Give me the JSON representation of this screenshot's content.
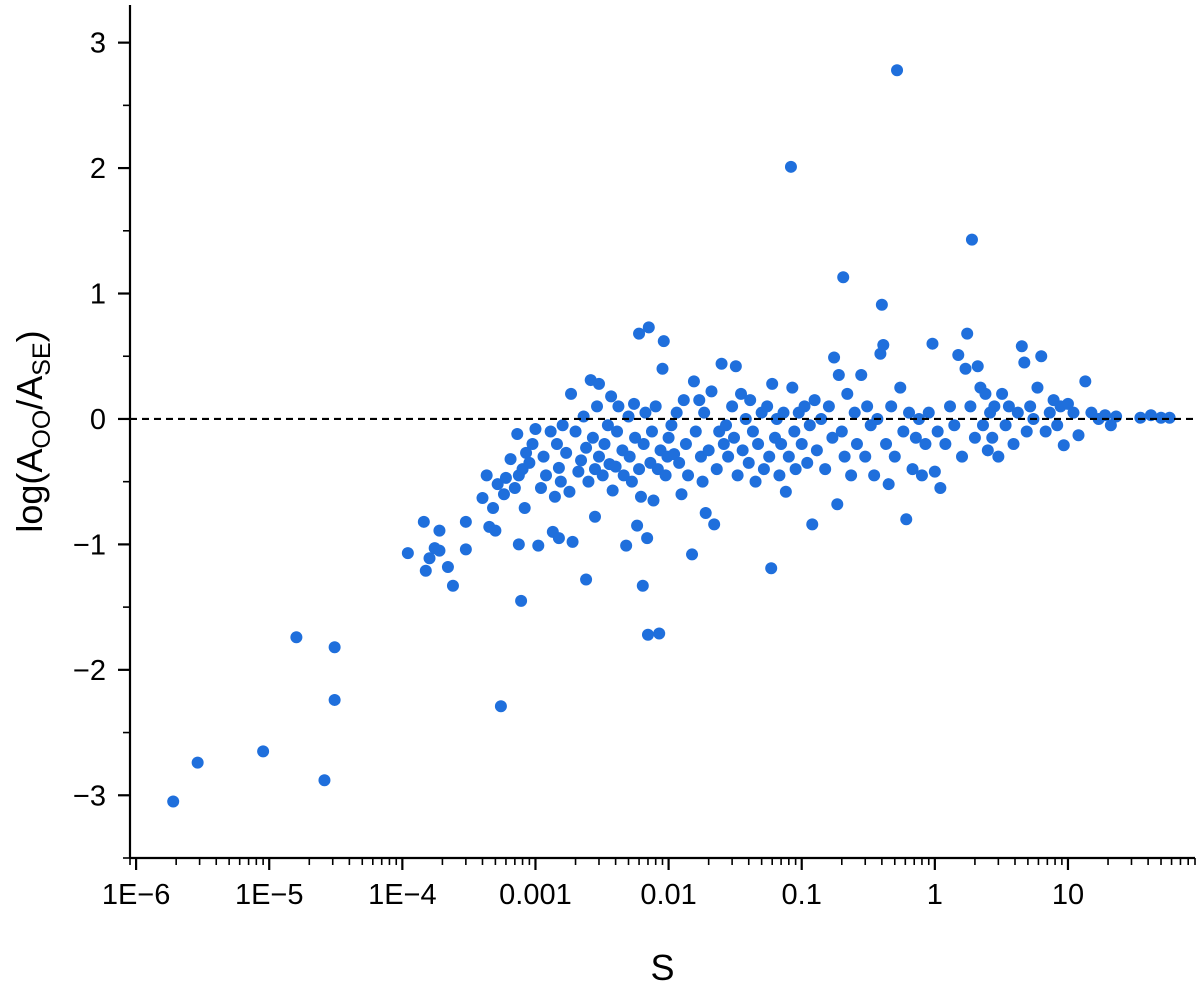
{
  "chart_data": {
    "type": "scatter",
    "xlabel": "S",
    "ylabel": "log(A_OO/A_SE)",
    "ylabel_parts": {
      "prefix": "log(A",
      "sub1": "OO",
      "mid": "/A",
      "sub2": "SE",
      "suffix": ")"
    },
    "x_scale": "log",
    "xlim": [
      9e-07,
      90
    ],
    "ylim": [
      -3.5,
      3.3
    ],
    "x_ticks": [
      1e-06,
      1e-05,
      0.0001,
      0.001,
      0.01,
      0.1,
      1,
      10
    ],
    "x_tick_labels": [
      "1E−6",
      "1E−5",
      "1E−4",
      "0.001",
      "0.01",
      "0.1",
      "1",
      "10"
    ],
    "y_ticks": [
      -3,
      -2,
      -1,
      0,
      1,
      2,
      3
    ],
    "y_tick_labels": [
      "−3",
      "−2",
      "−1",
      "0",
      "1",
      "2",
      "3"
    ],
    "reference_line": {
      "y": 0,
      "style": "dashed"
    },
    "grid": false,
    "marker_color": "#1f6fdc",
    "points": [
      [
        1.9e-06,
        -3.05
      ],
      [
        2.9e-06,
        -2.74
      ],
      [
        9e-06,
        -2.65
      ],
      [
        1.6e-05,
        -1.74
      ],
      [
        2.6e-05,
        -2.88
      ],
      [
        3.1e-05,
        -1.82
      ],
      [
        3.1e-05,
        -2.24
      ],
      [
        0.00011,
        -1.07
      ],
      [
        0.000145,
        -0.82
      ],
      [
        0.00015,
        -1.21
      ],
      [
        0.00016,
        -1.11
      ],
      [
        0.000175,
        -1.03
      ],
      [
        0.00019,
        -0.89
      ],
      [
        0.00019,
        -1.05
      ],
      [
        0.00022,
        -1.18
      ],
      [
        0.00024,
        -1.33
      ],
      [
        0.0003,
        -0.82
      ],
      [
        0.0003,
        -1.04
      ],
      [
        0.0004,
        -0.63
      ],
      [
        0.00043,
        -0.45
      ],
      [
        0.00045,
        -0.86
      ],
      [
        0.00048,
        -0.71
      ],
      [
        0.0005,
        -0.89
      ],
      [
        0.00052,
        -0.52
      ],
      [
        0.00055,
        -2.29
      ],
      [
        0.00058,
        -0.6
      ],
      [
        0.0006,
        -0.47
      ],
      [
        0.00065,
        -0.32
      ],
      [
        0.0007,
        -0.55
      ],
      [
        0.00073,
        -0.12
      ],
      [
        0.00075,
        -0.45
      ],
      [
        0.00075,
        -1.0
      ],
      [
        0.00078,
        -1.45
      ],
      [
        0.0008,
        -0.4
      ],
      [
        0.00083,
        -0.71
      ],
      [
        0.00085,
        -0.27
      ],
      [
        0.0009,
        -0.35
      ],
      [
        0.00095,
        -0.2
      ],
      [
        0.001,
        -0.08
      ],
      [
        0.00105,
        -1.01
      ],
      [
        0.0011,
        -0.55
      ],
      [
        0.00115,
        -0.3
      ],
      [
        0.0012,
        -0.45
      ],
      [
        0.0013,
        -0.1
      ],
      [
        0.00135,
        -0.9
      ],
      [
        0.0014,
        -0.62
      ],
      [
        0.00145,
        -0.2
      ],
      [
        0.0015,
        -0.39
      ],
      [
        0.0015,
        -0.95
      ],
      [
        0.00155,
        -0.5
      ],
      [
        0.0016,
        -0.05
      ],
      [
        0.0017,
        -0.27
      ],
      [
        0.0018,
        -0.58
      ],
      [
        0.00185,
        0.2
      ],
      [
        0.0019,
        -0.98
      ],
      [
        0.002,
        -0.1
      ],
      [
        0.0021,
        -0.42
      ],
      [
        0.0022,
        -0.33
      ],
      [
        0.0023,
        0.02
      ],
      [
        0.0024,
        -0.23
      ],
      [
        0.0024,
        -1.28
      ],
      [
        0.0025,
        -0.5
      ],
      [
        0.0026,
        0.31
      ],
      [
        0.0027,
        -0.15
      ],
      [
        0.0028,
        -0.78
      ],
      [
        0.0028,
        -0.4
      ],
      [
        0.0029,
        0.1
      ],
      [
        0.003,
        -0.3
      ],
      [
        0.003,
        0.28
      ],
      [
        0.0032,
        -0.45
      ],
      [
        0.0033,
        -0.2
      ],
      [
        0.0035,
        -0.05
      ],
      [
        0.0036,
        -0.36
      ],
      [
        0.0037,
        0.18
      ],
      [
        0.0038,
        -0.57
      ],
      [
        0.004,
        -0.38
      ],
      [
        0.0041,
        -0.1
      ],
      [
        0.0042,
        0.1
      ],
      [
        0.0045,
        -0.25
      ],
      [
        0.0046,
        -0.45
      ],
      [
        0.0048,
        -1.01
      ],
      [
        0.005,
        0.02
      ],
      [
        0.0051,
        -0.3
      ],
      [
        0.0053,
        -0.5
      ],
      [
        0.0055,
        0.12
      ],
      [
        0.0056,
        -0.15
      ],
      [
        0.0058,
        -0.85
      ],
      [
        0.006,
        0.68
      ],
      [
        0.006,
        -0.4
      ],
      [
        0.0062,
        -0.62
      ],
      [
        0.0064,
        -1.33
      ],
      [
        0.0065,
        -0.2
      ],
      [
        0.0067,
        0.05
      ],
      [
        0.0069,
        -0.95
      ],
      [
        0.007,
        -1.72
      ],
      [
        0.0071,
        0.73
      ],
      [
        0.0073,
        -0.35
      ],
      [
        0.0075,
        -0.1
      ],
      [
        0.0077,
        -0.65
      ],
      [
        0.008,
        0.1
      ],
      [
        0.0083,
        -0.4
      ],
      [
        0.0085,
        -1.71
      ],
      [
        0.0087,
        -0.25
      ],
      [
        0.009,
        0.4
      ],
      [
        0.0092,
        0.62
      ],
      [
        0.0095,
        -0.45
      ],
      [
        0.0098,
        -0.3
      ],
      [
        0.01,
        -0.15
      ],
      [
        0.0105,
        -0.05
      ],
      [
        0.011,
        -0.28
      ],
      [
        0.0115,
        0.05
      ],
      [
        0.012,
        -0.35
      ],
      [
        0.0125,
        -0.6
      ],
      [
        0.013,
        0.15
      ],
      [
        0.0135,
        -0.2
      ],
      [
        0.014,
        -0.45
      ],
      [
        0.015,
        -1.08
      ],
      [
        0.0155,
        0.3
      ],
      [
        0.016,
        -0.1
      ],
      [
        0.017,
        0.15
      ],
      [
        0.0175,
        -0.3
      ],
      [
        0.018,
        -0.5
      ],
      [
        0.0185,
        0.05
      ],
      [
        0.019,
        -0.75
      ],
      [
        0.02,
        -0.25
      ],
      [
        0.021,
        0.22
      ],
      [
        0.022,
        -0.84
      ],
      [
        0.023,
        -0.4
      ],
      [
        0.024,
        -0.1
      ],
      [
        0.025,
        0.44
      ],
      [
        0.026,
        -0.2
      ],
      [
        0.027,
        -0.05
      ],
      [
        0.028,
        -0.3
      ],
      [
        0.03,
        0.1
      ],
      [
        0.031,
        -0.15
      ],
      [
        0.032,
        0.42
      ],
      [
        0.033,
        -0.45
      ],
      [
        0.035,
        0.2
      ],
      [
        0.036,
        -0.25
      ],
      [
        0.038,
        0.0
      ],
      [
        0.04,
        -0.35
      ],
      [
        0.041,
        0.15
      ],
      [
        0.043,
        -0.1
      ],
      [
        0.045,
        -0.5
      ],
      [
        0.047,
        -0.2
      ],
      [
        0.05,
        0.05
      ],
      [
        0.052,
        -0.4
      ],
      [
        0.055,
        0.1
      ],
      [
        0.057,
        -0.3
      ],
      [
        0.059,
        -1.19
      ],
      [
        0.06,
        0.28
      ],
      [
        0.063,
        -0.15
      ],
      [
        0.065,
        0.0
      ],
      [
        0.068,
        -0.45
      ],
      [
        0.07,
        -0.2
      ],
      [
        0.073,
        0.05
      ],
      [
        0.076,
        -0.58
      ],
      [
        0.08,
        -0.3
      ],
      [
        0.083,
        2.01
      ],
      [
        0.085,
        0.25
      ],
      [
        0.088,
        -0.1
      ],
      [
        0.09,
        -0.4
      ],
      [
        0.095,
        0.05
      ],
      [
        0.1,
        -0.2
      ],
      [
        0.105,
        0.1
      ],
      [
        0.11,
        -0.35
      ],
      [
        0.115,
        -0.05
      ],
      [
        0.12,
        -0.84
      ],
      [
        0.125,
        0.15
      ],
      [
        0.13,
        -0.25
      ],
      [
        0.14,
        0.0
      ],
      [
        0.15,
        -0.4
      ],
      [
        0.16,
        0.1
      ],
      [
        0.17,
        -0.15
      ],
      [
        0.175,
        0.49
      ],
      [
        0.185,
        -0.68
      ],
      [
        0.19,
        0.35
      ],
      [
        0.2,
        -0.1
      ],
      [
        0.205,
        1.13
      ],
      [
        0.21,
        -0.3
      ],
      [
        0.22,
        0.2
      ],
      [
        0.235,
        -0.45
      ],
      [
        0.25,
        0.05
      ],
      [
        0.26,
        -0.2
      ],
      [
        0.28,
        0.35
      ],
      [
        0.3,
        -0.3
      ],
      [
        0.31,
        0.1
      ],
      [
        0.33,
        -0.05
      ],
      [
        0.35,
        -0.45
      ],
      [
        0.37,
        0.0
      ],
      [
        0.39,
        0.52
      ],
      [
        0.4,
        0.91
      ],
      [
        0.41,
        0.59
      ],
      [
        0.43,
        -0.2
      ],
      [
        0.45,
        -0.52
      ],
      [
        0.47,
        0.1
      ],
      [
        0.5,
        -0.3
      ],
      [
        0.52,
        2.78
      ],
      [
        0.55,
        0.25
      ],
      [
        0.58,
        -0.1
      ],
      [
        0.61,
        -0.8
      ],
      [
        0.64,
        0.05
      ],
      [
        0.68,
        -0.4
      ],
      [
        0.72,
        -0.15
      ],
      [
        0.76,
        0.0
      ],
      [
        0.8,
        -0.45
      ],
      [
        0.85,
        -0.2
      ],
      [
        0.9,
        0.05
      ],
      [
        0.96,
        0.6
      ],
      [
        1.0,
        -0.42
      ],
      [
        1.05,
        -0.1
      ],
      [
        1.1,
        -0.55
      ],
      [
        1.2,
        -0.2
      ],
      [
        1.3,
        0.1
      ],
      [
        1.4,
        -0.05
      ],
      [
        1.5,
        0.51
      ],
      [
        1.6,
        -0.3
      ],
      [
        1.7,
        0.4
      ],
      [
        1.75,
        0.68
      ],
      [
        1.85,
        0.1
      ],
      [
        1.9,
        1.43
      ],
      [
        2.0,
        -0.15
      ],
      [
        2.1,
        0.42
      ],
      [
        2.2,
        0.25
      ],
      [
        2.3,
        -0.05
      ],
      [
        2.4,
        0.2
      ],
      [
        2.5,
        -0.25
      ],
      [
        2.6,
        0.05
      ],
      [
        2.7,
        -0.15
      ],
      [
        2.8,
        0.1
      ],
      [
        3.0,
        -0.3
      ],
      [
        3.2,
        0.2
      ],
      [
        3.4,
        -0.05
      ],
      [
        3.6,
        0.1
      ],
      [
        3.9,
        -0.2
      ],
      [
        4.2,
        0.05
      ],
      [
        4.5,
        0.58
      ],
      [
        4.7,
        0.45
      ],
      [
        4.9,
        -0.1
      ],
      [
        5.2,
        0.1
      ],
      [
        5.5,
        0.0
      ],
      [
        5.9,
        0.25
      ],
      [
        6.3,
        0.5
      ],
      [
        6.8,
        -0.1
      ],
      [
        7.3,
        0.05
      ],
      [
        7.8,
        0.15
      ],
      [
        8.3,
        -0.05
      ],
      [
        8.8,
        0.1
      ],
      [
        9.3,
        -0.21
      ],
      [
        10.0,
        0.12
      ],
      [
        11.0,
        0.05
      ],
      [
        12.0,
        -0.13
      ],
      [
        13.5,
        0.3
      ],
      [
        15.0,
        0.05
      ],
      [
        17.0,
        0.0
      ],
      [
        19.0,
        0.03
      ],
      [
        21.0,
        -0.05
      ],
      [
        23.0,
        0.02
      ],
      [
        35.0,
        0.01
      ],
      [
        42.0,
        0.03
      ],
      [
        50.0,
        0.01
      ],
      [
        58.0,
        0.01
      ]
    ]
  }
}
